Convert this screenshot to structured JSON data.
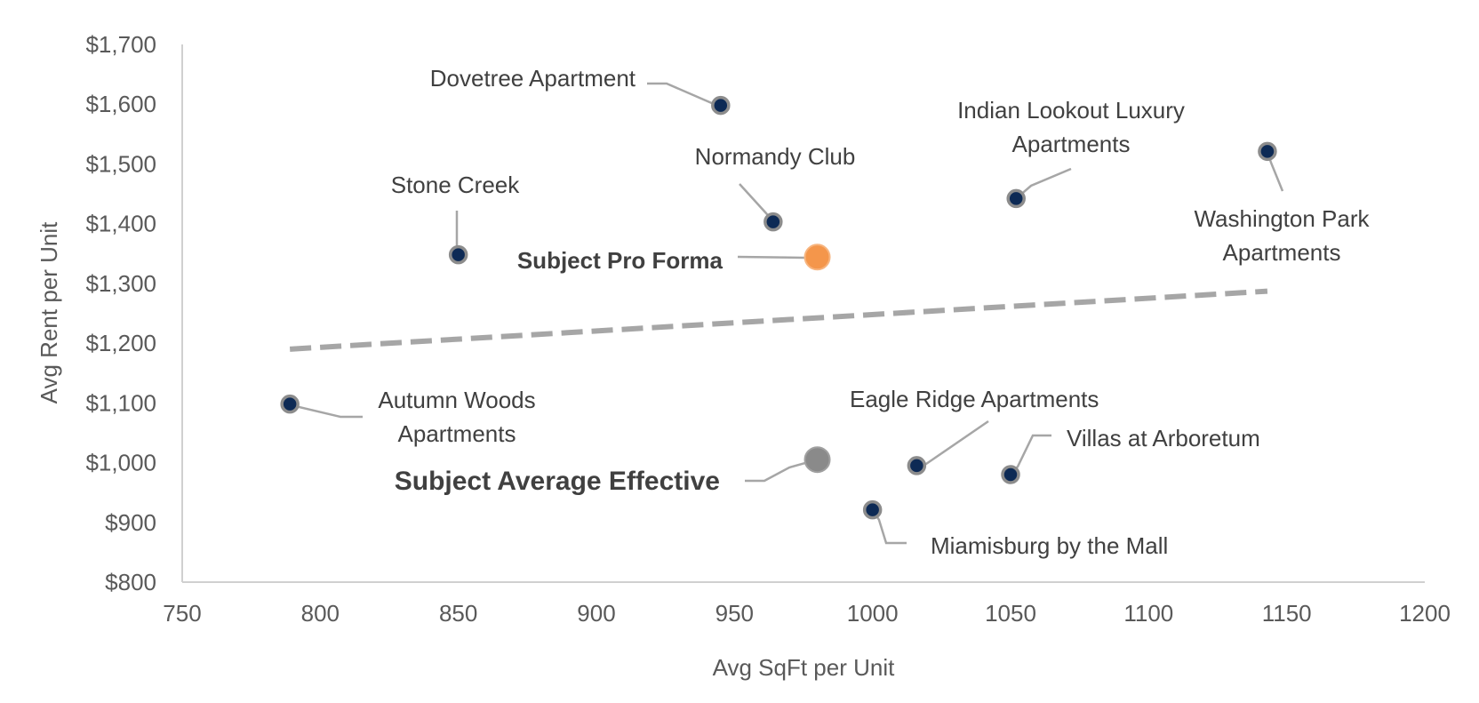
{
  "chart_data": {
    "type": "scatter",
    "xlabel": "Avg SqFt per Unit",
    "ylabel": "Avg Rent per Unit",
    "xlim": [
      750,
      1200
    ],
    "ylim": [
      800,
      1700
    ],
    "xticks": [
      750,
      800,
      850,
      900,
      950,
      1000,
      1050,
      1100,
      1150,
      1200
    ],
    "yticks": [
      800,
      900,
      1000,
      1100,
      1200,
      1300,
      1400,
      1500,
      1600,
      1700
    ],
    "x_tick_labels": [
      "750",
      "800",
      "850",
      "900",
      "950",
      "1000",
      "1050",
      "1100",
      "1150",
      "1200"
    ],
    "y_tick_labels": [
      "$800",
      "$900",
      "$1,000",
      "$1,100",
      "$1,200",
      "$1,300",
      "$1,400",
      "$1,500",
      "$1,600",
      "$1,700"
    ],
    "grid": false,
    "colors": {
      "comparable": "#0d2a55",
      "comparable_ring": "#8c8c8c",
      "pro_forma": "#f4964b",
      "average_effective": "#8a8a8a",
      "trendline": "#a6a6a6",
      "axis": "#d0d0d0"
    },
    "points": [
      {
        "name": "Dovetree Apartment",
        "label_lines": [
          "Dovetree Apartment"
        ],
        "x": 945,
        "y": 1598,
        "kind": "comparable"
      },
      {
        "name": "Indian Lookout Luxury Apartments",
        "label_lines": [
          "Indian Lookout Luxury",
          "Apartments"
        ],
        "x": 1052,
        "y": 1442,
        "kind": "comparable"
      },
      {
        "name": "Washington Park Apartments",
        "label_lines": [
          "Washington Park",
          "Apartments"
        ],
        "x": 1143,
        "y": 1521,
        "kind": "comparable"
      },
      {
        "name": "Normandy Club",
        "label_lines": [
          "Normandy Club"
        ],
        "x": 964,
        "y": 1403,
        "kind": "comparable"
      },
      {
        "name": "Stone Creek",
        "label_lines": [
          "Stone Creek"
        ],
        "x": 850,
        "y": 1348,
        "kind": "comparable"
      },
      {
        "name": "Subject Pro Forma",
        "label_lines": [
          "Subject Pro Forma"
        ],
        "x": 980,
        "y": 1344,
        "kind": "pro_forma"
      },
      {
        "name": "Autumn Woods Apartments",
        "label_lines": [
          "Autumn Woods",
          "Apartments"
        ],
        "x": 789,
        "y": 1098,
        "kind": "comparable"
      },
      {
        "name": "Eagle Ridge Apartments",
        "label_lines": [
          "Eagle Ridge Apartments"
        ],
        "x": 1016,
        "y": 995,
        "kind": "comparable"
      },
      {
        "name": "Villas at Arboretum",
        "label_lines": [
          "Villas at Arboretum"
        ],
        "x": 1050,
        "y": 980,
        "kind": "comparable"
      },
      {
        "name": "Subject Average Effective",
        "label_lines": [
          "Subject Average Effective"
        ],
        "x": 980,
        "y": 1005,
        "kind": "average_effective"
      },
      {
        "name": "Miamisburg by the Mall",
        "label_lines": [
          "Miamisburg by the Mall"
        ],
        "x": 1000,
        "y": 921,
        "kind": "comparable"
      }
    ],
    "trendline": {
      "style": "dashed",
      "x": [
        789,
        1143
      ],
      "y": [
        1190,
        1287
      ]
    }
  }
}
